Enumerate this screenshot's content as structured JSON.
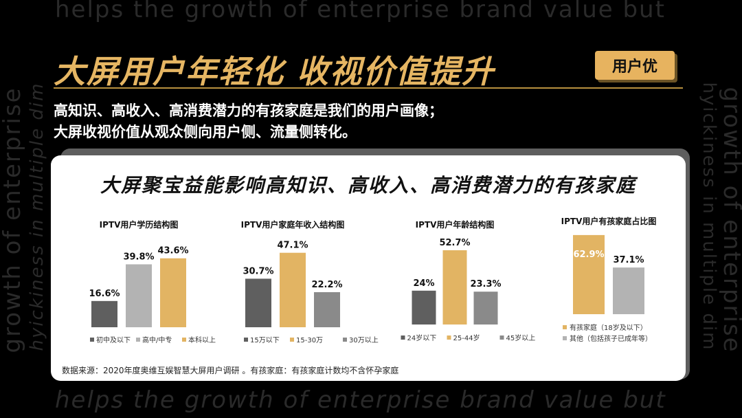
{
  "decor": {
    "top": "helps the growth of enterprise brand value but",
    "bottom": "helps the growth of enterprise brand value but",
    "left1": "growth of enterprise",
    "left2": "hyickiness in multiple dim",
    "right1": "growth of enterprise",
    "right2": "hyickiness in multiple dim"
  },
  "header": {
    "title": "大屏用户年轻化  收视价值提升",
    "badge": "用户优",
    "sub1": "高知识、高收入、高消费潜力的有孩家庭是我们的用户画像；",
    "sub2": "大屏收视价值从观众侧向用户侧、流量侧转化。"
  },
  "card": {
    "title": "大屏聚宝益能影响高知识、高收入、高消费潜力的有孩家庭",
    "source": "数据来源：2020年度奥维互娱智慧大屏用户调研 。有孩家庭：有孩家庭计数均不含怀孕家庭"
  },
  "colors": {
    "dark": "#5f5f5f",
    "light": "#b3b3b3",
    "gold": "#e2b463",
    "mid": "#8a8a8a"
  },
  "chart_data": [
    {
      "type": "bar",
      "title": "IPTV用户学历结构图",
      "categories": [
        "初中及以下",
        "高中/中专",
        "本科以上"
      ],
      "values": [
        16.6,
        39.8,
        43.6
      ],
      "labels": [
        "16.6%",
        "39.8%",
        "43.6%"
      ],
      "colors": [
        "#5f5f5f",
        "#b3b3b3",
        "#e2b463"
      ],
      "legend": "bottom"
    },
    {
      "type": "bar",
      "title": "IPTV用户家庭年收入结构图",
      "categories": [
        "15万以下",
        "15-30万",
        "30万以上"
      ],
      "values": [
        30.7,
        47.1,
        22.2
      ],
      "labels": [
        "30.7%",
        "47.1%",
        "22.2%"
      ],
      "colors": [
        "#5f5f5f",
        "#e2b463",
        "#8a8a8a"
      ],
      "legend": "bottom"
    },
    {
      "type": "bar",
      "title": "IPTV用户年龄结构图",
      "categories": [
        "24岁以下",
        "25-44岁",
        "45岁以上"
      ],
      "values": [
        24,
        52.7,
        23.3
      ],
      "labels": [
        "24%",
        "52.7%",
        "23.3%"
      ],
      "colors": [
        "#5f5f5f",
        "#e2b463",
        "#8a8a8a"
      ],
      "legend": "bottom"
    },
    {
      "type": "bar",
      "title": "IPTV用户有孩家庭占比图",
      "categories": [
        "有孩家庭（18岁及以下）",
        "其他（包括孩子已成年等）"
      ],
      "values": [
        62.9,
        37.1
      ],
      "labels": [
        "62.9%",
        "37.1%"
      ],
      "colors": [
        "#e2b463",
        "#b3b3b3"
      ],
      "legend": "bottom"
    }
  ]
}
